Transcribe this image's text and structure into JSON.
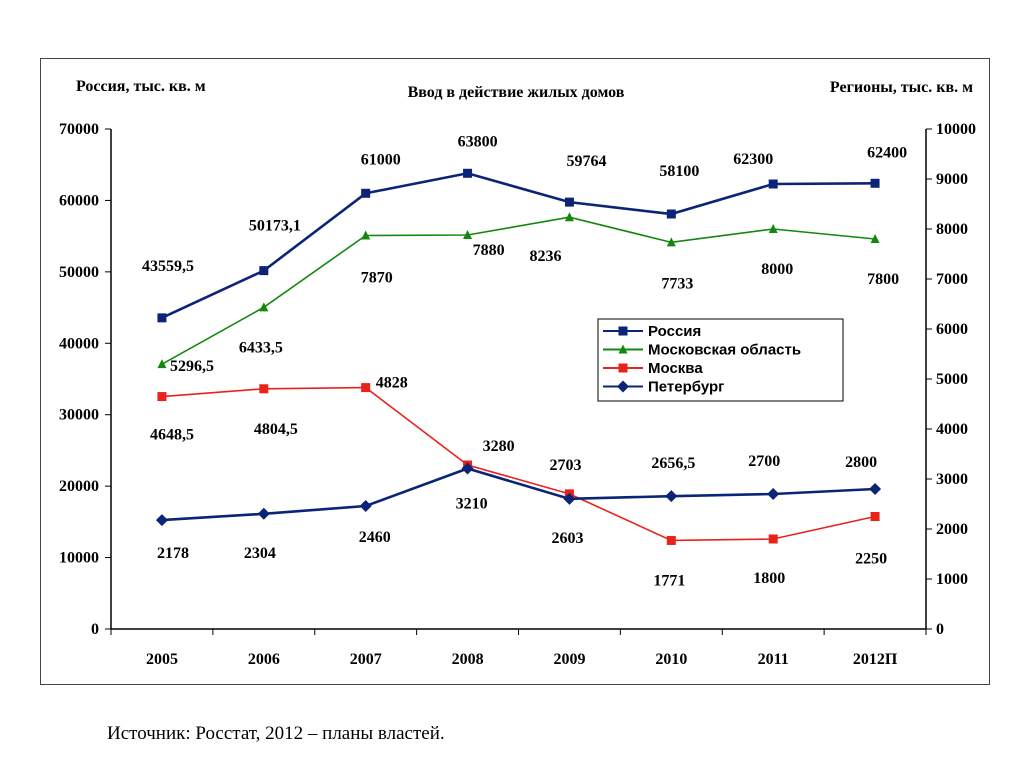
{
  "chart_data": {
    "type": "line",
    "title": "Ввод в действие жилых домов",
    "ylabel_left": "Россия, тыс. кв. м",
    "ylabel_right": "Регионы, тыс. кв. м",
    "categories": [
      "2005",
      "2006",
      "2007",
      "2008",
      "2009",
      "2010",
      "2011",
      "2012П"
    ],
    "ylim_left": [
      0,
      70000
    ],
    "ylim_right": [
      0,
      10000
    ],
    "yticks_left": [
      "0",
      "10000",
      "20000",
      "30000",
      "40000",
      "50000",
      "60000",
      "70000"
    ],
    "yticks_right": [
      "0",
      "1000",
      "2000",
      "3000",
      "4000",
      "5000",
      "6000",
      "7000",
      "8000",
      "9000",
      "10000"
    ],
    "grid": false,
    "legend_position": "right",
    "series": [
      {
        "name": "Россия",
        "axis": "left",
        "color": "#0b2477",
        "marker": "square",
        "values": [
          43559.5,
          50173.1,
          61000,
          63800,
          59764,
          58100,
          62300,
          62400
        ],
        "labels": [
          "43559,5",
          "50173,1",
          "61000",
          "63800",
          "59764",
          "58100",
          "62300",
          "62400"
        ]
      },
      {
        "name": "Московская область",
        "axis": "right",
        "color": "#15870f",
        "marker": "triangle",
        "values": [
          5296.5,
          6433.5,
          7870,
          7880,
          8236,
          7733,
          8000,
          7800
        ],
        "labels": [
          "5296,5",
          "6433,5",
          "7870",
          "7880",
          "8236",
          "7733",
          "8000",
          "7800"
        ]
      },
      {
        "name": "Москва",
        "axis": "right",
        "color": "#e8231c",
        "marker": "square",
        "values": [
          4648.5,
          4804.5,
          4828,
          3280,
          2703,
          1771,
          1800,
          2250
        ],
        "labels": [
          "4648,5",
          "4804,5",
          "4828",
          "3280",
          "2703",
          "1771",
          "1800",
          "2250"
        ]
      },
      {
        "name": "Петербург",
        "axis": "right",
        "color": "#0b2477",
        "marker": "diamond",
        "values": [
          2178,
          2304,
          2460,
          3210,
          2603,
          2656.5,
          2700,
          2800
        ],
        "labels": [
          "2178",
          "2304",
          "2460",
          "3210",
          "2603",
          "2656,5",
          "2700",
          "2800"
        ]
      }
    ]
  },
  "source_note": "Источник: Росстат, 2012 – планы властей."
}
